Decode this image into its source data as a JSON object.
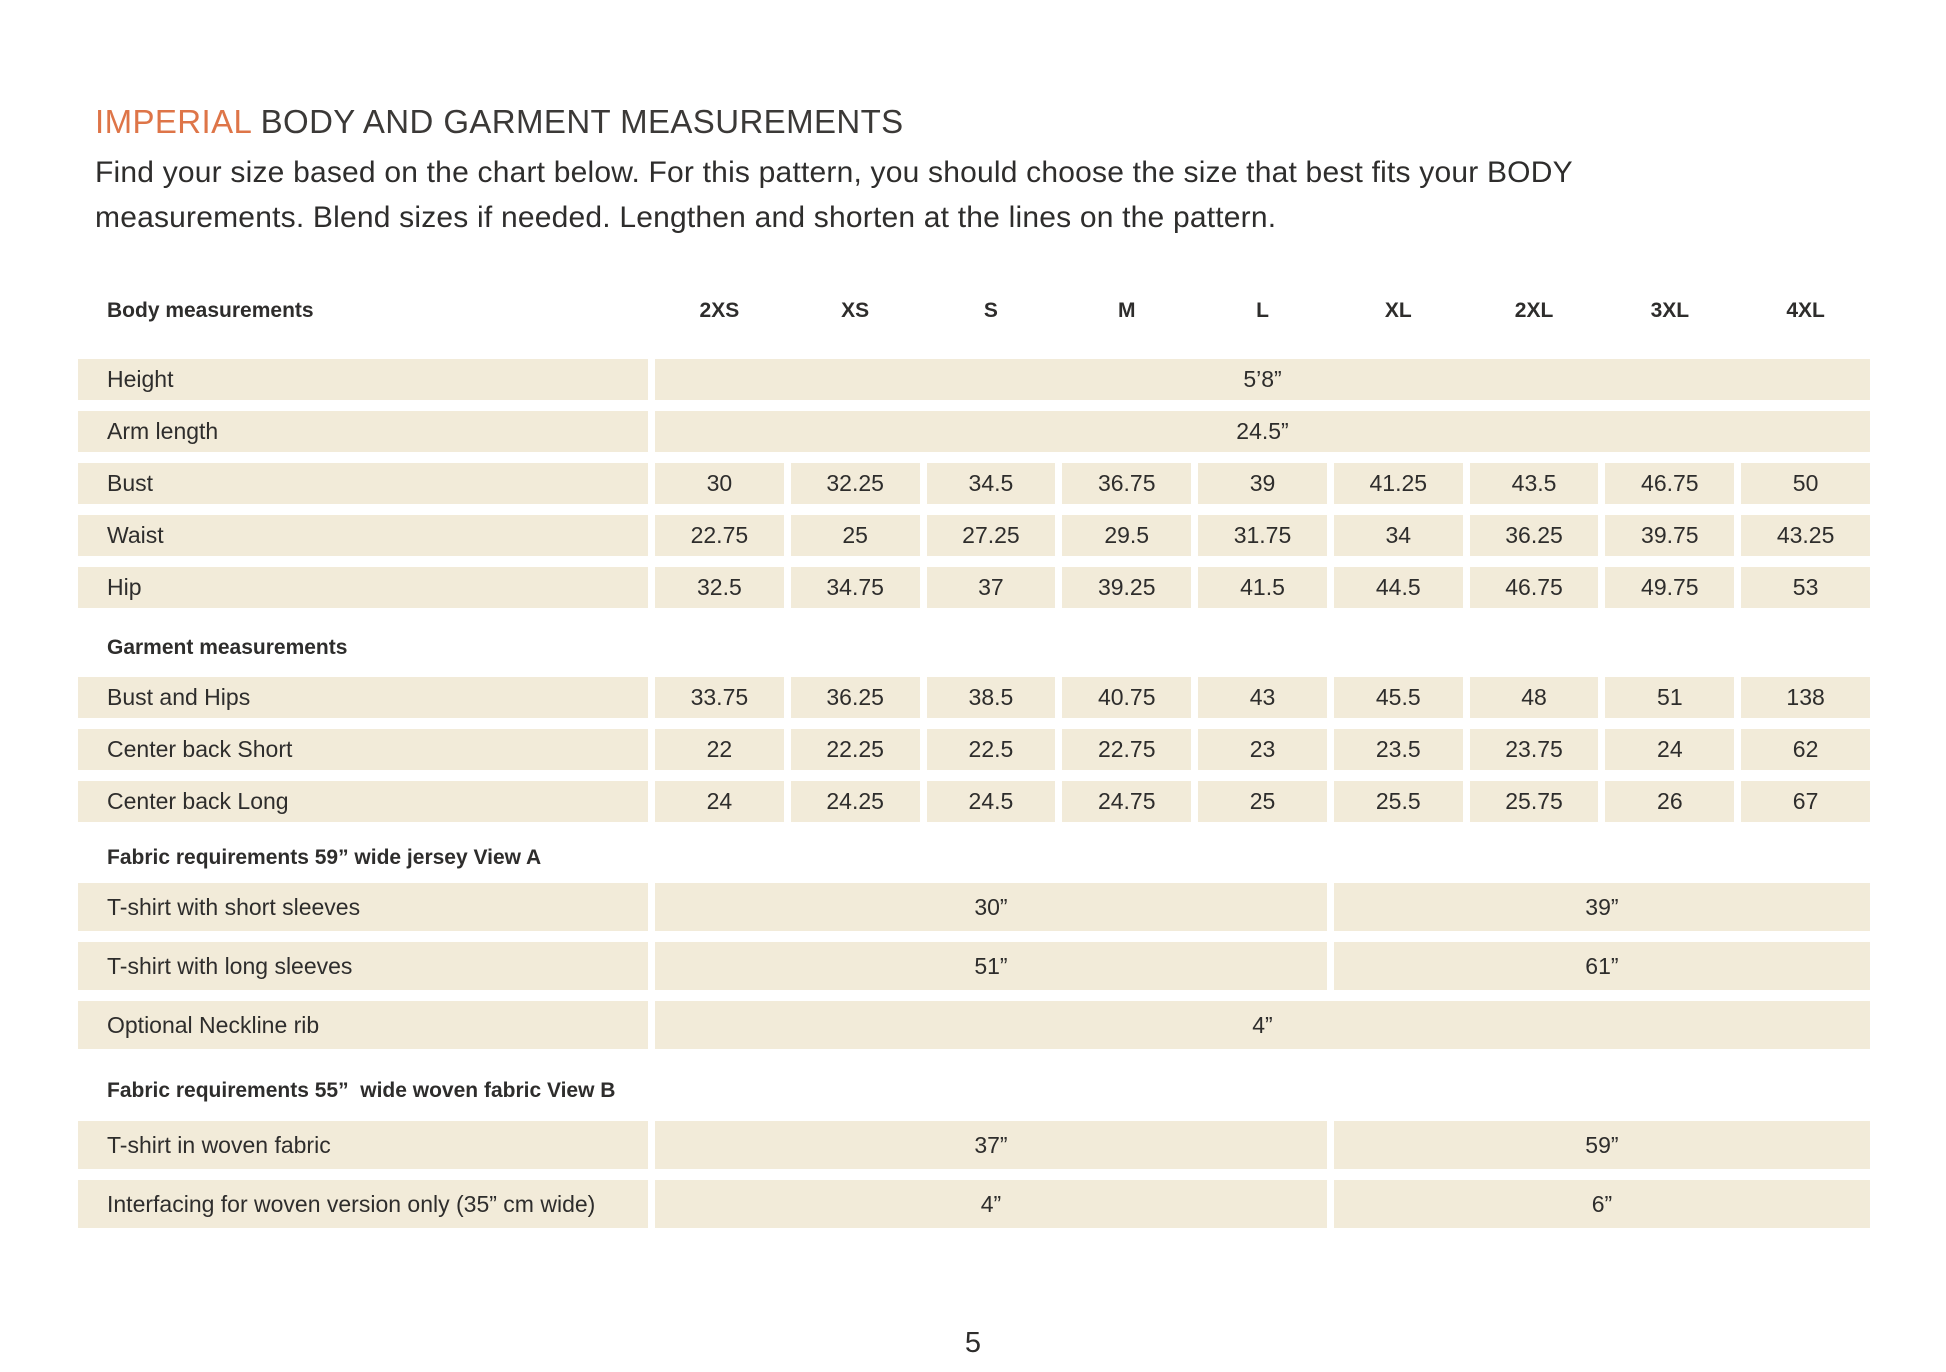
{
  "colors": {
    "accent": "#DE7548",
    "cell_bg": "#F2EBD9",
    "text": "#2E2D2C"
  },
  "header": {
    "title_highlight": "IMPERIAL",
    "title_rest": " BODY AND GARMENT MEASUREMENTS",
    "intro_lines": [
      "Find your size based on the chart below. For this pattern, you should choose the size that best fits your BODY",
      "measurements. Blend sizes if needed. Lengthen and shorten at the lines on the pattern."
    ]
  },
  "table": {
    "header_label": "Body measurements",
    "sizes": [
      "2XS",
      "XS",
      "S",
      "M",
      "L",
      "XL",
      "2XL",
      "3XL",
      "4XL"
    ],
    "body_rows": [
      {
        "label": "Height",
        "value": "5’8”"
      },
      {
        "label": "Arm length",
        "value": "24.5”"
      },
      {
        "label": "Bust",
        "values": [
          "30",
          "32.25",
          "34.5",
          "36.75",
          "39",
          "41.25",
          "43.5",
          "46.75",
          "50"
        ]
      },
      {
        "label": "Waist",
        "values": [
          "22.75",
          "25",
          "27.25",
          "29.5",
          "31.75",
          "34",
          "36.25",
          "39.75",
          "43.25"
        ]
      },
      {
        "label": "Hip",
        "values": [
          "32.5",
          "34.75",
          "37",
          "39.25",
          "41.5",
          "44.5",
          "46.75",
          "49.75",
          "53"
        ]
      }
    ],
    "garment_section": "Garment measurements",
    "garment_rows": [
      {
        "label": "Bust and Hips",
        "values": [
          "33.75",
          "36.25",
          "38.5",
          "40.75",
          "43",
          "45.5",
          "48",
          "51",
          "138"
        ]
      },
      {
        "label": "Center back Short",
        "values": [
          "22",
          "22.25",
          "22.5",
          "22.75",
          "23",
          "23.5",
          "23.75",
          "24",
          "62"
        ]
      },
      {
        "label": "Center back Long",
        "values": [
          "24",
          "24.25",
          "24.5",
          "24.75",
          "25",
          "25.5",
          "25.75",
          "26",
          "67"
        ]
      }
    ],
    "fabric_a_section": "Fabric requirements 59” wide jersey View A",
    "fabric_a_rows": [
      {
        "label": "T-shirt with short sleeves",
        "left": "30”",
        "right": "39”"
      },
      {
        "label": "T-shirt with long sleeves",
        "left": "51”",
        "right": "61”"
      },
      {
        "label": "Optional Neckline rib",
        "full": "4”"
      }
    ],
    "fabric_b_section": "Fabric requirements 55”  wide woven fabric View B",
    "fabric_b_rows": [
      {
        "label": "T-shirt in woven fabric",
        "left": "37”",
        "right": "59”"
      },
      {
        "label": "Interfacing for woven version only (35” cm wide)",
        "left": "4”",
        "right": "6”"
      }
    ]
  },
  "footer": {
    "page_number": "5"
  }
}
